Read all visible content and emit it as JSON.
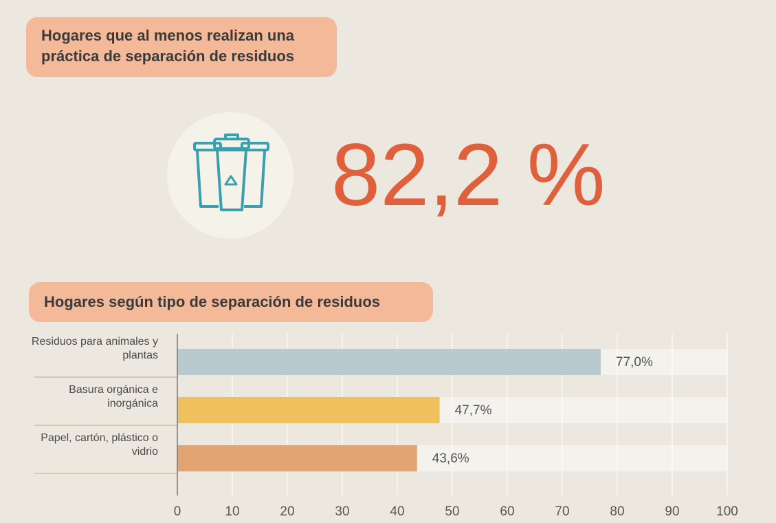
{
  "header": {
    "title": "Hogares que al menos realizan una práctica de separación de residuos",
    "stat": "82,2 %"
  },
  "chart_data": {
    "type": "bar",
    "orientation": "horizontal",
    "title": "Hogares según tipo de separación de residuos",
    "categories": [
      "Residuos para animales y plantas",
      "Basura orgánica e inorgánica",
      "Papel, cartón, plástico o vidrio"
    ],
    "values": [
      77.0,
      47.7,
      43.6
    ],
    "value_labels": [
      "77,0%",
      "47,7%",
      "43,6%"
    ],
    "colors": [
      "#b8cad0",
      "#efc15e",
      "#e3a473"
    ],
    "xlim": [
      0,
      100
    ],
    "xticks": [
      0,
      10,
      20,
      30,
      40,
      50,
      60,
      70,
      80,
      90,
      100
    ],
    "grid": true
  }
}
